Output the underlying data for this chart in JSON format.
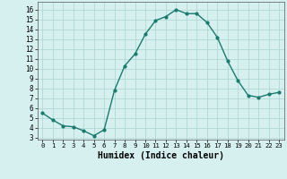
{
  "x": [
    0,
    1,
    2,
    3,
    4,
    5,
    6,
    7,
    8,
    9,
    10,
    11,
    12,
    13,
    14,
    15,
    16,
    17,
    18,
    19,
    20,
    21,
    22,
    23
  ],
  "y": [
    5.5,
    4.8,
    4.2,
    4.1,
    3.7,
    3.2,
    3.8,
    7.8,
    10.3,
    11.5,
    13.5,
    14.9,
    15.3,
    16.0,
    15.6,
    15.6,
    14.7,
    13.2,
    10.8,
    8.8,
    7.3,
    7.1,
    7.4,
    7.6
  ],
  "line_color": "#1a7a6e",
  "marker": "o",
  "marker_size": 2,
  "bg_color": "#d6f0ef",
  "grid_color": "#b0d8d5",
  "xlabel": "Humidex (Indice chaleur)",
  "xlim": [
    -0.5,
    23.5
  ],
  "ylim": [
    2.8,
    16.8
  ],
  "yticks": [
    3,
    4,
    5,
    6,
    7,
    8,
    9,
    10,
    11,
    12,
    13,
    14,
    15,
    16
  ],
  "xticks": [
    0,
    1,
    2,
    3,
    4,
    5,
    6,
    7,
    8,
    9,
    10,
    11,
    12,
    13,
    14,
    15,
    16,
    17,
    18,
    19,
    20,
    21,
    22,
    23
  ],
  "tick_fontsize": 6,
  "xlabel_fontsize": 7,
  "line_width": 1.0
}
